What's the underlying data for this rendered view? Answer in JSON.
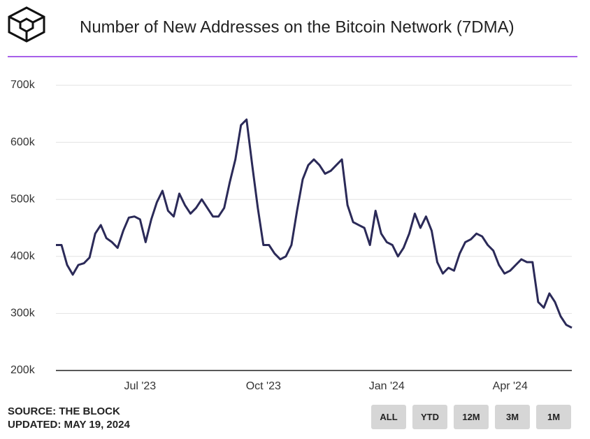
{
  "chart_data": {
    "type": "line",
    "title": "Number of New Addresses on the Bitcoin Network (7DMA)",
    "source": "SOURCE: THE BLOCK",
    "updated": "UPDATED: MAY 19, 2024",
    "buttons": [
      "ALL",
      "YTD",
      "12M",
      "3M",
      "1M"
    ],
    "categories": [
      null,
      null,
      null,
      null,
      null,
      null,
      null,
      null,
      null,
      null,
      null,
      null,
      null,
      null,
      null,
      "Jul '23",
      null,
      null,
      null,
      null,
      null,
      null,
      null,
      null,
      null,
      null,
      null,
      null,
      null,
      null,
      null,
      null,
      null,
      null,
      null,
      null,
      null,
      "Oct '23",
      null,
      null,
      null,
      null,
      null,
      null,
      null,
      null,
      null,
      null,
      null,
      null,
      null,
      null,
      null,
      null,
      null,
      null,
      null,
      null,
      null,
      "Jan '24",
      null,
      null,
      null,
      null,
      null,
      null,
      null,
      null,
      null,
      null,
      null,
      null,
      null,
      null,
      null,
      null,
      null,
      null,
      null,
      null,
      null,
      "Apr '24",
      null,
      null,
      null,
      null,
      null,
      null,
      null,
      null,
      null,
      null,
      null
    ],
    "series": [
      {
        "name": "New Addresses",
        "color": "#2b2a58",
        "values": [
          420000,
          420000,
          385000,
          368000,
          385000,
          388000,
          398000,
          440000,
          455000,
          432000,
          425000,
          415000,
          445000,
          468000,
          470000,
          465000,
          425000,
          465000,
          495000,
          515000,
          480000,
          470000,
          510000,
          490000,
          475000,
          485000,
          500000,
          485000,
          470000,
          470000,
          485000,
          530000,
          570000,
          630000,
          640000,
          560000,
          485000,
          420000,
          420000,
          405000,
          395000,
          400000,
          420000,
          480000,
          535000,
          560000,
          570000,
          560000,
          545000,
          550000,
          560000,
          570000,
          490000,
          460000,
          455000,
          450000,
          420000,
          480000,
          440000,
          425000,
          420000,
          400000,
          415000,
          440000,
          475000,
          450000,
          470000,
          445000,
          390000,
          370000,
          380000,
          375000,
          405000,
          425000,
          430000,
          440000,
          435000,
          420000,
          410000,
          385000,
          370000,
          375000,
          385000,
          395000,
          390000,
          390000,
          320000,
          310000,
          335000,
          320000,
          295000,
          280000,
          275000
        ]
      }
    ],
    "ylim": [
      200000,
      700000
    ],
    "yticks": [
      {
        "value": 200000,
        "label": "200k"
      },
      {
        "value": 300000,
        "label": "300k"
      },
      {
        "value": 400000,
        "label": "400k"
      },
      {
        "value": 500000,
        "label": "500k"
      },
      {
        "value": 600000,
        "label": "600k"
      },
      {
        "value": 700000,
        "label": "700k"
      }
    ],
    "grid": true
  }
}
